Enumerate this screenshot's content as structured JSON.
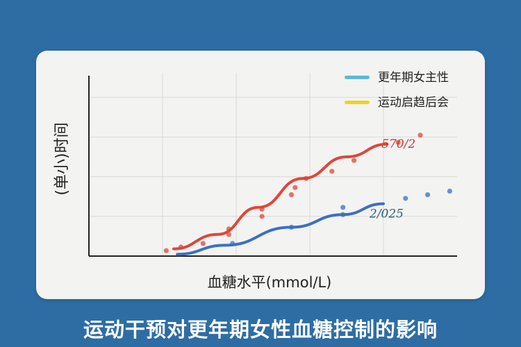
{
  "footer_title": "运动干预对更年期女性血糖控制的影响",
  "colors": {
    "background": "#2e6da4",
    "card": "#f3f3f1",
    "series_red": "#e0453a",
    "series_blue": "#3b70c2",
    "legend_blue": "#5db7dc",
    "legend_yellow": "#f2d21c"
  },
  "chart_data": {
    "type": "line",
    "title": "",
    "xlabel": "血糖水平(mmol/L)",
    "ylabel": "(单小)时间",
    "grid": true,
    "legend_position": "top-right",
    "legend": [
      {
        "label": "更年期女主性",
        "color": "#5db7dc"
      },
      {
        "label": "运动启趋后会",
        "color": "#f2d21c"
      }
    ],
    "xlim": [
      0,
      10
    ],
    "ylim": [
      0,
      10
    ],
    "series": [
      {
        "color": "#e0453a",
        "end_label": "570/2",
        "line": [
          [
            2.3,
            0.4
          ],
          [
            3.5,
            1.2
          ],
          [
            4.6,
            2.7
          ],
          [
            5.8,
            4.3
          ],
          [
            7.0,
            5.5
          ],
          [
            8.1,
            6.2
          ]
        ],
        "points": [
          [
            2.1,
            0.3
          ],
          [
            2.5,
            0.5
          ],
          [
            3.1,
            0.7
          ],
          [
            3.8,
            1.2
          ],
          [
            3.8,
            1.5
          ],
          [
            4.7,
            2.2
          ],
          [
            4.7,
            2.6
          ],
          [
            5.5,
            3.4
          ],
          [
            5.6,
            3.8
          ],
          [
            5.9,
            4.3
          ],
          [
            6.6,
            4.7
          ],
          [
            7.2,
            5.3
          ],
          [
            8.4,
            6.3
          ],
          [
            9.0,
            6.7
          ]
        ]
      },
      {
        "color": "#3b70c2",
        "end_label": "2/025",
        "line": [
          [
            2.4,
            0.1
          ],
          [
            3.7,
            0.6
          ],
          [
            5.5,
            1.6
          ],
          [
            6.9,
            2.3
          ],
          [
            8.0,
            2.9
          ]
        ],
        "points": [
          [
            3.9,
            0.7
          ],
          [
            5.5,
            1.6
          ],
          [
            6.9,
            2.3
          ],
          [
            6.9,
            2.7
          ],
          [
            8.6,
            3.2
          ],
          [
            9.2,
            3.4
          ],
          [
            9.8,
            3.6
          ]
        ]
      }
    ]
  }
}
